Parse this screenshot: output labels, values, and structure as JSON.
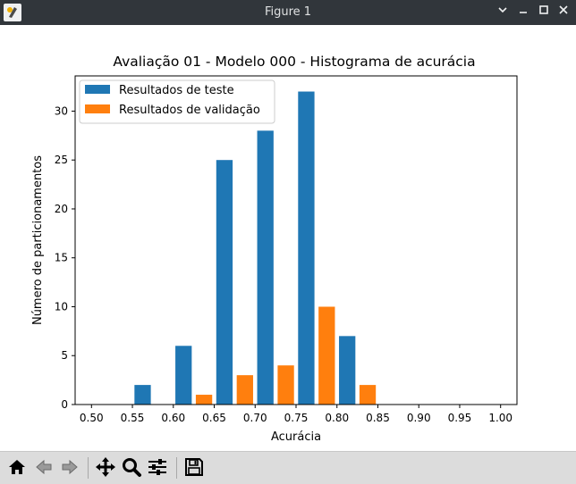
{
  "window": {
    "title": "Figure 1",
    "controls": [
      "minimize",
      "maximize",
      "close"
    ]
  },
  "toolbar": {
    "buttons": [
      {
        "name": "home-button",
        "icon": "home-icon"
      },
      {
        "name": "back-button",
        "icon": "arrow-left-icon"
      },
      {
        "name": "forward-button",
        "icon": "arrow-right-icon"
      },
      {
        "name": "pan-button",
        "icon": "move-icon"
      },
      {
        "name": "zoom-button",
        "icon": "magnifier-icon"
      },
      {
        "name": "subplots-button",
        "icon": "sliders-icon"
      },
      {
        "name": "save-button",
        "icon": "floppy-icon"
      }
    ]
  },
  "colors": {
    "teste": "#1f77b4",
    "validacao": "#ff7f0e"
  },
  "chart_data": {
    "type": "bar",
    "title": "Avaliação 01 - Modelo 000 - Histograma de acurácia",
    "xlabel": "Acurácia",
    "ylabel": "Número de particionamentos",
    "xlim": [
      0.48,
      1.02
    ],
    "ylim": [
      0,
      33.6
    ],
    "xticks": [
      "0.50",
      "0.55",
      "0.60",
      "0.65",
      "0.70",
      "0.75",
      "0.80",
      "0.85",
      "0.90",
      "0.95",
      "1.00"
    ],
    "yticks": [
      "0",
      "5",
      "10",
      "15",
      "20",
      "25",
      "30"
    ],
    "bin_width": 0.05,
    "bin_starts": [
      0.5,
      0.55,
      0.6,
      0.65,
      0.7,
      0.75,
      0.8,
      0.85,
      0.9,
      0.95
    ],
    "legend_position": "top-left",
    "grid": false,
    "series": [
      {
        "name": "Resultados de teste",
        "values": [
          0,
          2,
          6,
          25,
          28,
          32,
          7,
          0,
          0,
          0
        ]
      },
      {
        "name": "Resultados de validação",
        "values": [
          0,
          0,
          1,
          3,
          4,
          10,
          2,
          0,
          0,
          0
        ]
      }
    ]
  }
}
